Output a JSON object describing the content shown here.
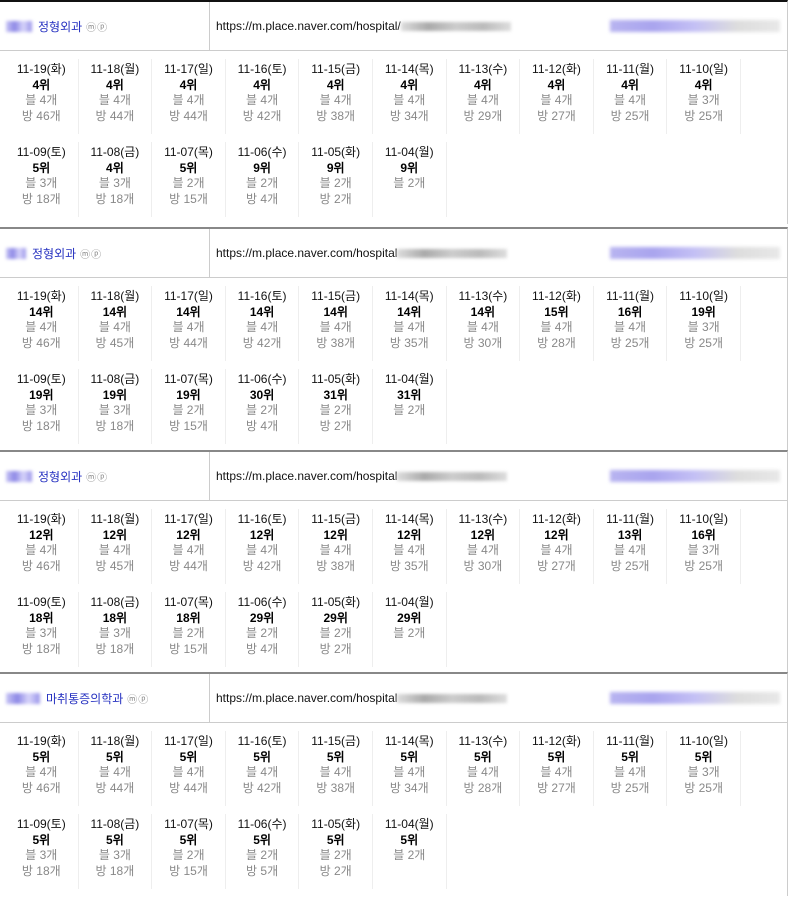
{
  "blocks": [
    {
      "title": "정형외과",
      "icons": "ⓜⓟ",
      "url": "https://m.place.naver.com/hospital/",
      "cells": [
        [
          "11-19(화)",
          "4위",
          "블 4개",
          "방 46개"
        ],
        [
          "11-18(월)",
          "4위",
          "블 4개",
          "방 44개"
        ],
        [
          "11-17(일)",
          "4위",
          "블 4개",
          "방 44개"
        ],
        [
          "11-16(토)",
          "4위",
          "블 4개",
          "방 42개"
        ],
        [
          "11-15(금)",
          "4위",
          "블 4개",
          "방 38개"
        ],
        [
          "11-14(목)",
          "4위",
          "블 4개",
          "방 34개"
        ],
        [
          "11-13(수)",
          "4위",
          "블 4개",
          "방 29개"
        ],
        [
          "11-12(화)",
          "4위",
          "블 4개",
          "방 27개"
        ],
        [
          "11-11(월)",
          "4위",
          "블 4개",
          "방 25개"
        ],
        [
          "11-10(일)",
          "4위",
          "블 3개",
          "방 25개"
        ],
        [
          "11-09(토)",
          "5위",
          "블 3개",
          "방 18개"
        ],
        [
          "11-08(금)",
          "4위",
          "블 3개",
          "방 18개"
        ],
        [
          "11-07(목)",
          "5위",
          "블 2개",
          "방 15개"
        ],
        [
          "11-06(수)",
          "9위",
          "블 2개",
          "방 4개"
        ],
        [
          "11-05(화)",
          "9위",
          "블 2개",
          "방 2개"
        ],
        [
          "11-04(월)",
          "9위",
          "블 2개"
        ]
      ]
    },
    {
      "title": "정형외과",
      "icons": "ⓜⓟ",
      "url": "https://m.place.naver.com/hospital",
      "cells": [
        [
          "11-19(화)",
          "14위",
          "블 4개",
          "방 46개"
        ],
        [
          "11-18(월)",
          "14위",
          "블 4개",
          "방 45개"
        ],
        [
          "11-17(일)",
          "14위",
          "블 4개",
          "방 44개"
        ],
        [
          "11-16(토)",
          "14위",
          "블 4개",
          "방 42개"
        ],
        [
          "11-15(금)",
          "14위",
          "블 4개",
          "방 38개"
        ],
        [
          "11-14(목)",
          "14위",
          "블 4개",
          "방 35개"
        ],
        [
          "11-13(수)",
          "14위",
          "블 4개",
          "방 30개"
        ],
        [
          "11-12(화)",
          "15위",
          "블 4개",
          "방 28개"
        ],
        [
          "11-11(월)",
          "16위",
          "블 4개",
          "방 25개"
        ],
        [
          "11-10(일)",
          "19위",
          "블 3개",
          "방 25개"
        ],
        [
          "11-09(토)",
          "19위",
          "블 3개",
          "방 18개"
        ],
        [
          "11-08(금)",
          "19위",
          "블 3개",
          "방 18개"
        ],
        [
          "11-07(목)",
          "19위",
          "블 2개",
          "방 15개"
        ],
        [
          "11-06(수)",
          "30위",
          "블 2개",
          "방 4개"
        ],
        [
          "11-05(화)",
          "31위",
          "블 2개",
          "방 2개"
        ],
        [
          "11-04(월)",
          "31위",
          "블 2개"
        ]
      ]
    },
    {
      "title": "정형외과",
      "icons": "ⓜⓟ",
      "url": "https://m.place.naver.com/hospital",
      "cells": [
        [
          "11-19(화)",
          "12위",
          "블 4개",
          "방 46개"
        ],
        [
          "11-18(월)",
          "12위",
          "블 4개",
          "방 45개"
        ],
        [
          "11-17(일)",
          "12위",
          "블 4개",
          "방 44개"
        ],
        [
          "11-16(토)",
          "12위",
          "블 4개",
          "방 42개"
        ],
        [
          "11-15(금)",
          "12위",
          "블 4개",
          "방 38개"
        ],
        [
          "11-14(목)",
          "12위",
          "블 4개",
          "방 35개"
        ],
        [
          "11-13(수)",
          "12위",
          "블 4개",
          "방 30개"
        ],
        [
          "11-12(화)",
          "12위",
          "블 4개",
          "방 27개"
        ],
        [
          "11-11(월)",
          "13위",
          "블 4개",
          "방 25개"
        ],
        [
          "11-10(일)",
          "16위",
          "블 3개",
          "방 25개"
        ],
        [
          "11-09(토)",
          "18위",
          "블 3개",
          "방 18개"
        ],
        [
          "11-08(금)",
          "18위",
          "블 3개",
          "방 18개"
        ],
        [
          "11-07(목)",
          "18위",
          "블 2개",
          "방 15개"
        ],
        [
          "11-06(수)",
          "29위",
          "블 2개",
          "방 4개"
        ],
        [
          "11-05(화)",
          "29위",
          "블 2개",
          "방 2개"
        ],
        [
          "11-04(월)",
          "29위",
          "블 2개"
        ]
      ]
    },
    {
      "title": "마취통증의학과",
      "icons": "ⓜⓟ",
      "url": "https://m.place.naver.com/hospital",
      "cells": [
        [
          "11-19(화)",
          "5위",
          "블 4개",
          "방 46개"
        ],
        [
          "11-18(월)",
          "5위",
          "블 4개",
          "방 44개"
        ],
        [
          "11-17(일)",
          "5위",
          "블 4개",
          "방 44개"
        ],
        [
          "11-16(토)",
          "5위",
          "블 4개",
          "방 42개"
        ],
        [
          "11-15(금)",
          "5위",
          "블 4개",
          "방 38개"
        ],
        [
          "11-14(목)",
          "5위",
          "블 4개",
          "방 34개"
        ],
        [
          "11-13(수)",
          "5위",
          "블 4개",
          "방 28개"
        ],
        [
          "11-12(화)",
          "5위",
          "블 4개",
          "방 27개"
        ],
        [
          "11-11(월)",
          "5위",
          "블 4개",
          "방 25개"
        ],
        [
          "11-10(일)",
          "5위",
          "블 3개",
          "방 25개"
        ],
        [
          "11-09(토)",
          "5위",
          "블 3개",
          "방 18개"
        ],
        [
          "11-08(금)",
          "5위",
          "블 3개",
          "방 18개"
        ],
        [
          "11-07(목)",
          "5위",
          "블 2개",
          "방 15개"
        ],
        [
          "11-06(수)",
          "5위",
          "블 2개",
          "방 5개"
        ],
        [
          "11-05(화)",
          "5위",
          "블 2개",
          "방 2개"
        ],
        [
          "11-04(월)",
          "5위",
          "블 2개"
        ]
      ]
    }
  ]
}
